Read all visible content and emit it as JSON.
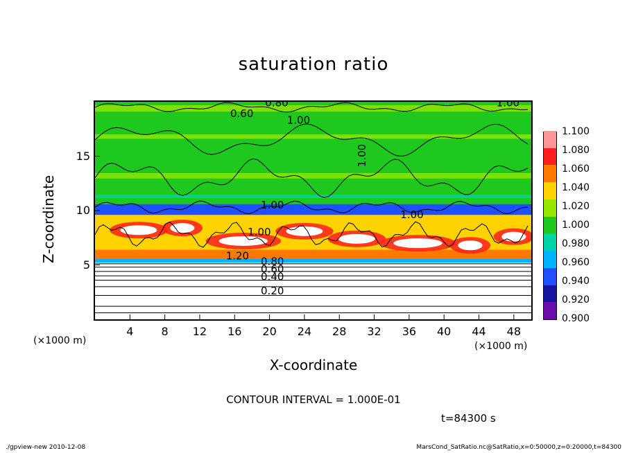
{
  "chart_data": {
    "type": "heatmap",
    "title": "saturation ratio",
    "xlabel": "X-coordinate",
    "ylabel": "Z-coordinate",
    "x_unit_left": "(×1000 m)",
    "x_unit_right": "(×1000 m)",
    "xlim": [
      0,
      50
    ],
    "ylim": [
      0,
      20
    ],
    "xticks": [
      4,
      8,
      12,
      16,
      20,
      24,
      28,
      32,
      36,
      40,
      44,
      48
    ],
    "yticks": [
      5,
      10,
      15
    ],
    "colorbar": {
      "levels": [
        "0.900",
        "0.920",
        "0.940",
        "0.960",
        "0.980",
        "1.000",
        "1.020",
        "1.040",
        "1.060",
        "1.080",
        "1.100"
      ],
      "colors": [
        "#6a0dad",
        "#1414a0",
        "#1e50ff",
        "#00b4ff",
        "#00d2aa",
        "#1ec81e",
        "#96e600",
        "#ffd200",
        "#ff7800",
        "#ff1e1e",
        "#ff9696"
      ]
    },
    "contour_labels": [
      "0.80",
      "1.00",
      "0.60",
      "1.00",
      "1.00",
      "1.00",
      "1.00",
      "1.00",
      "1.20",
      "0.80",
      "0.60",
      "0.40",
      "0.20"
    ],
    "contour_interval": "CONTOUR INTERVAL = 1.000E-01",
    "time": "t=84300 s"
  },
  "footer": {
    "left": "./gpview-new   2010-12-08",
    "right": "MarsCond_SatRatio.nc@SatRatio,x=0:50000,z=0:20000,t=84300"
  }
}
